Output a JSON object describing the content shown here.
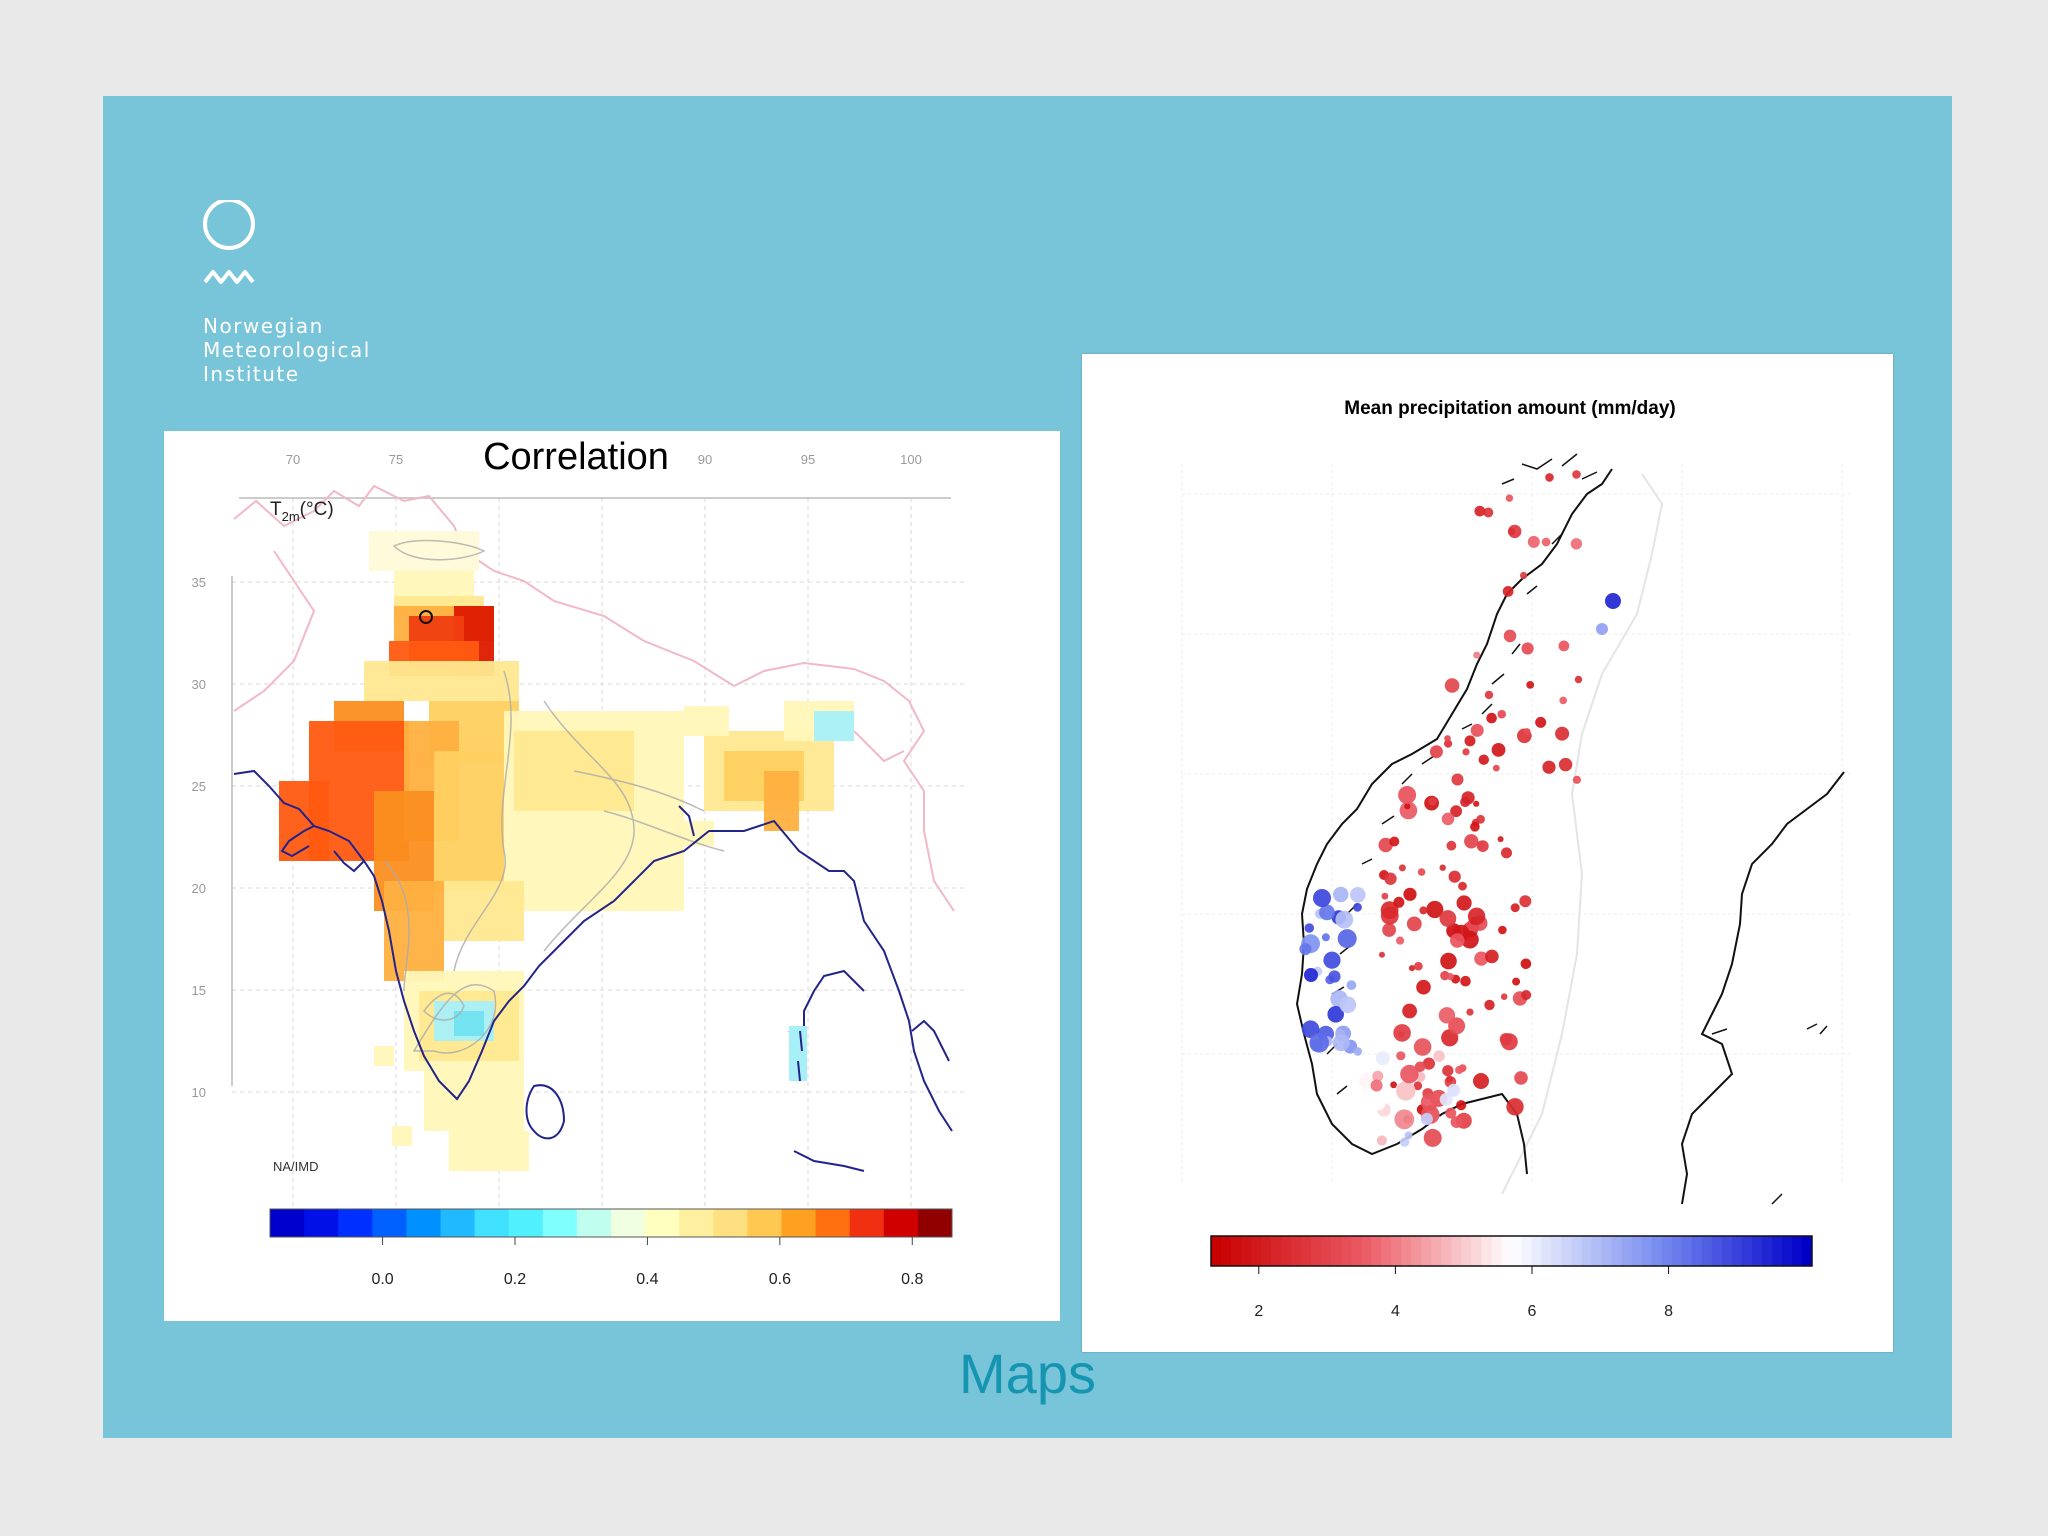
{
  "logo": {
    "icon": "met-institute-logo-icon",
    "lines": [
      "Norwegian",
      "Meteorological",
      "Institute"
    ]
  },
  "caption": "Maps",
  "colors": {
    "background": "#e9e9e9",
    "slide": "#78c4d8",
    "caption": "#1695b2"
  },
  "correlation_map": {
    "title": "Correlation",
    "variable_label": "T",
    "variable_sub": "2m",
    "variable_unit": "(°C)",
    "source_label": "NA/IMD",
    "lon_ticks": [
      70,
      75,
      80,
      85,
      90,
      95,
      100
    ],
    "lon_labels": [
      "70",
      "75",
      "",
      "",
      "90",
      "95",
      "100"
    ],
    "lat_ticks": [
      10,
      15,
      20,
      25,
      30,
      35
    ],
    "lat_labels": [
      "10",
      "15",
      "20",
      "25",
      "30",
      "35"
    ],
    "colorbar": {
      "ticks": [
        "0.0",
        "0.2",
        "0.4",
        "0.6",
        "0.8"
      ],
      "colors": [
        "#0000cc",
        "#0010e6",
        "#0030ff",
        "#0060ff",
        "#0090ff",
        "#20b8ff",
        "#40e0ff",
        "#50f0ff",
        "#80ffff",
        "#c0fff0",
        "#f0ffe0",
        "#ffffc0",
        "#fff0a0",
        "#ffe080",
        "#ffc850",
        "#ffa020",
        "#ff7010",
        "#f03010",
        "#d00000",
        "#900000"
      ]
    }
  },
  "precip_map": {
    "title": "Mean precipitation amount (mm/day)",
    "colorbar": {
      "ticks": [
        "2",
        "4",
        "6",
        "8"
      ],
      "values": [
        2,
        4,
        6,
        8
      ]
    }
  }
}
